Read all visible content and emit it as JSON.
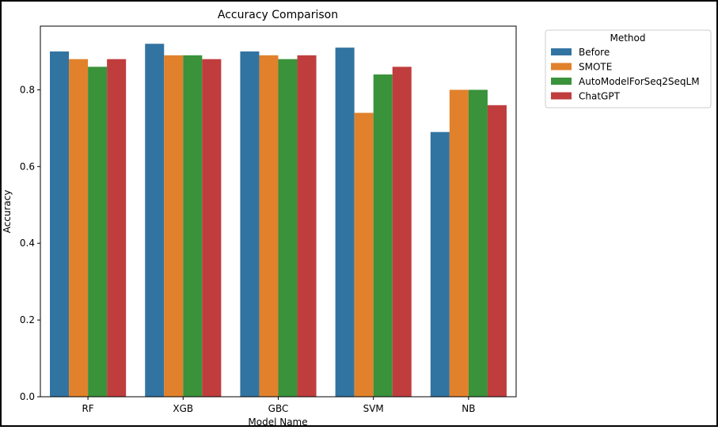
{
  "chart_data": {
    "type": "bar",
    "title": "Accuracy Comparison",
    "xlabel": "Model Name",
    "ylabel": "Accuracy",
    "categories": [
      "RF",
      "XGB",
      "GBC",
      "SVM",
      "NB"
    ],
    "ylim": [
      0,
      0.966
    ],
    "yticks": [
      "0.0",
      "0.2",
      "0.4",
      "0.6",
      "0.8"
    ],
    "grid": false,
    "legend": {
      "title": "Method",
      "placement": "top-right"
    },
    "series": [
      {
        "name": "Before",
        "color": "#3274a1",
        "values": [
          0.9,
          0.92,
          0.9,
          0.91,
          0.69
        ]
      },
      {
        "name": "SMOTE",
        "color": "#e1812c",
        "values": [
          0.88,
          0.89,
          0.89,
          0.74,
          0.8
        ]
      },
      {
        "name": "AutoModelForSeq2SeqLM",
        "color": "#3a923a",
        "values": [
          0.86,
          0.89,
          0.88,
          0.84,
          0.8
        ]
      },
      {
        "name": "ChatGPT",
        "color": "#c03d3e",
        "values": [
          0.88,
          0.88,
          0.89,
          0.86,
          0.76
        ]
      }
    ]
  }
}
